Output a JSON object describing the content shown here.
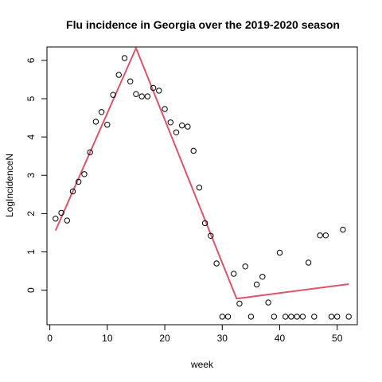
{
  "chart_data": {
    "type": "scatter",
    "title": "Flu incidence in Georgia over the 2019-2020 season",
    "xlabel": "week",
    "ylabel": "LogIncidenceN",
    "xlim": [
      -0.5,
      53.5
    ],
    "ylim": [
      -0.9,
      6.35
    ],
    "x_ticks": [
      0,
      10,
      20,
      30,
      40,
      50
    ],
    "y_ticks": [
      0,
      1,
      2,
      3,
      4,
      5,
      6
    ],
    "grid": false,
    "legend": "none",
    "point_color": "#000000",
    "line_color": "#DF536B",
    "points": {
      "x": [
        1,
        2,
        3,
        4,
        5,
        6,
        7,
        8,
        9,
        10,
        11,
        12,
        13,
        14,
        15,
        16,
        17,
        18,
        19,
        20,
        21,
        22,
        23,
        24,
        25,
        26,
        27,
        28,
        29,
        30,
        31,
        32,
        33,
        34,
        35,
        36,
        37,
        38,
        39,
        40,
        41,
        42,
        43,
        44,
        45,
        46,
        47,
        48,
        49,
        50,
        51,
        52
      ],
      "y": [
        1.87,
        2.02,
        1.82,
        2.58,
        2.83,
        3.03,
        3.6,
        4.4,
        4.65,
        4.32,
        5.1,
        5.62,
        6.06,
        5.45,
        5.12,
        5.06,
        5.06,
        5.28,
        5.21,
        4.73,
        4.38,
        4.12,
        4.3,
        4.27,
        3.64,
        2.68,
        1.75,
        1.42,
        0.7,
        -0.69,
        -0.69,
        0.43,
        -0.35,
        0.62,
        -0.69,
        0.15,
        0.35,
        -0.32,
        -0.69,
        0.98,
        -0.69,
        -0.69,
        -0.69,
        -0.69,
        0.72,
        -0.69,
        1.43,
        1.43,
        -0.69,
        -0.69,
        1.58,
        -0.69
      ]
    },
    "fit_line": {
      "x": [
        1,
        15,
        32.5,
        52
      ],
      "y": [
        1.56,
        6.32,
        -0.22,
        0.16
      ]
    }
  }
}
